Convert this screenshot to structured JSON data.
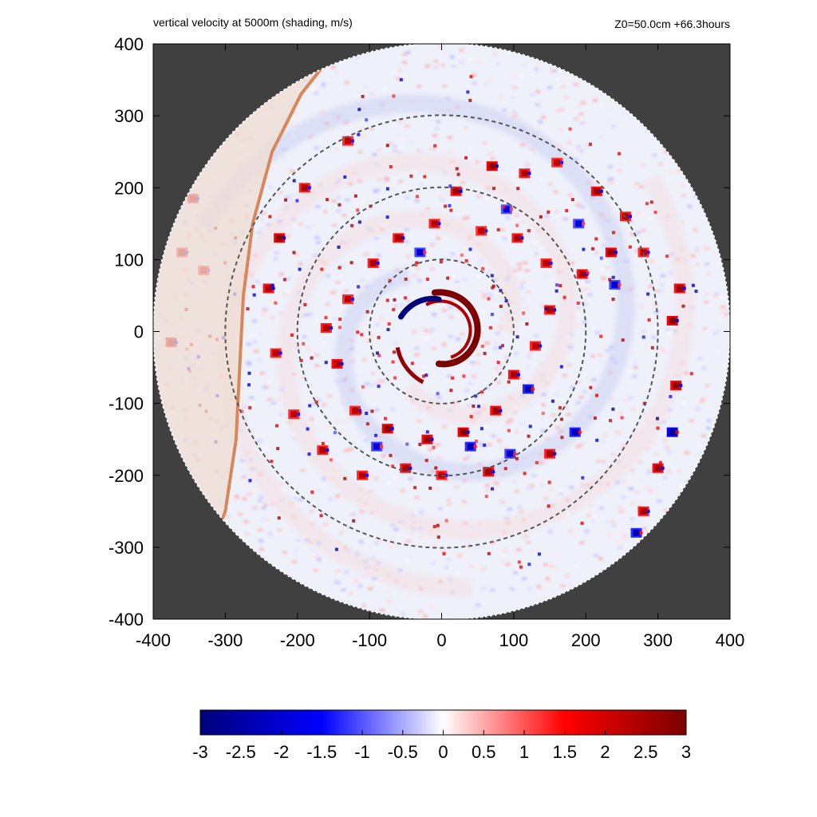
{
  "header": {
    "title": "vertical velocity at 5000m (shading, m/s)",
    "run_info": "Z0=50.0cm  +66.3hours"
  },
  "chart_data": {
    "type": "heatmap",
    "title": "vertical velocity at 5000m (shading, m/s)",
    "subtitle": "Z0=50.0cm  +66.3hours",
    "xlabel": "",
    "ylabel": "",
    "xlim": [
      -400,
      400
    ],
    "ylim": [
      -400,
      400
    ],
    "x_ticks": [
      -400,
      -300,
      -200,
      -100,
      0,
      100,
      200,
      300,
      400
    ],
    "y_ticks": [
      -400,
      -300,
      -200,
      -100,
      0,
      100,
      200,
      300,
      400
    ],
    "x_tick_labels": [
      "-400",
      "-300",
      "-200",
      "-100",
      "0",
      "100",
      "200",
      "300",
      "400"
    ],
    "y_tick_labels": [
      "-400",
      "-300",
      "-200",
      "-100",
      "0",
      "100",
      "200",
      "300",
      "400"
    ],
    "domain_radius": 400,
    "range_rings": [
      100,
      200,
      300
    ],
    "domain_edge_curve_x": [
      -140,
      -195,
      -235,
      -262,
      -275,
      -280,
      -285,
      -300,
      -330,
      -380
    ],
    "domain_edge_curve_y": [
      400,
      330,
      250,
      150,
      50,
      -50,
      -150,
      -250,
      -330,
      -390
    ],
    "colorbar": {
      "min": -3,
      "max": 3,
      "ticks": [
        -3,
        -2.5,
        -2,
        -1.5,
        -1,
        -0.5,
        0,
        0.5,
        1,
        1.5,
        2,
        2.5,
        3
      ],
      "tick_labels": [
        "-3",
        "-2.5",
        "-2",
        "-1.5",
        "-1",
        "-0.5",
        "0",
        "0.5",
        "1",
        "1.5",
        "2",
        "2.5",
        "3"
      ],
      "colors": [
        "#00007a",
        "#0000ff",
        "#ffffff",
        "#ff0000",
        "#7a0000"
      ]
    },
    "eyewall": {
      "updraft_arc_radius": 55,
      "downdraft_arc_radius": 45,
      "peak_updraft": 3,
      "peak_downdraft": -3
    },
    "convective_cells": [
      {
        "x": 20,
        "y": 195,
        "w": 2.5
      },
      {
        "x": 70,
        "y": 230,
        "w": 2.8
      },
      {
        "x": 115,
        "y": 220,
        "w": 2.4
      },
      {
        "x": 160,
        "y": 235,
        "w": 2.2
      },
      {
        "x": 215,
        "y": 195,
        "w": 2.6
      },
      {
        "x": 255,
        "y": 160,
        "w": 2.4
      },
      {
        "x": 280,
        "y": 110,
        "w": 2.2
      },
      {
        "x": 235,
        "y": 110,
        "w": 2.7
      },
      {
        "x": 195,
        "y": 80,
        "w": 2.5
      },
      {
        "x": 145,
        "y": 95,
        "w": 2.3
      },
      {
        "x": 105,
        "y": 130,
        "w": 2.4
      },
      {
        "x": 55,
        "y": 140,
        "w": 2.2
      },
      {
        "x": -10,
        "y": 150,
        "w": 2.3
      },
      {
        "x": -60,
        "y": 130,
        "w": 2.5
      },
      {
        "x": -95,
        "y": 95,
        "w": 2.4
      },
      {
        "x": -130,
        "y": 45,
        "w": 2.2
      },
      {
        "x": -160,
        "y": 5,
        "w": 2.4
      },
      {
        "x": -145,
        "y": -45,
        "w": 2.6
      },
      {
        "x": -120,
        "y": -110,
        "w": 2.3
      },
      {
        "x": -75,
        "y": -135,
        "w": 2.8
      },
      {
        "x": -20,
        "y": -150,
        "w": 2.7
      },
      {
        "x": 30,
        "y": -140,
        "w": 2.9
      },
      {
        "x": 75,
        "y": -110,
        "w": 2.6
      },
      {
        "x": 100,
        "y": -60,
        "w": 2.5
      },
      {
        "x": 130,
        "y": -20,
        "w": 2.3
      },
      {
        "x": 150,
        "y": 30,
        "w": 2.4
      },
      {
        "x": -50,
        "y": -190,
        "w": 2.5
      },
      {
        "x": 0,
        "y": -200,
        "w": 2.2
      },
      {
        "x": 65,
        "y": -195,
        "w": 2.6
      },
      {
        "x": -110,
        "y": -200,
        "w": 2.3
      },
      {
        "x": -165,
        "y": -165,
        "w": 2.4
      },
      {
        "x": -205,
        "y": -115,
        "w": 2.2
      },
      {
        "x": -230,
        "y": -30,
        "w": 2.3
      },
      {
        "x": -240,
        "y": 60,
        "w": 2.5
      },
      {
        "x": -225,
        "y": 130,
        "w": 2.8
      },
      {
        "x": -190,
        "y": 200,
        "w": 2.4
      },
      {
        "x": -130,
        "y": 265,
        "w": 2.2
      },
      {
        "x": 320,
        "y": 15,
        "w": 2.9
      },
      {
        "x": 325,
        "y": -75,
        "w": 2.8
      },
      {
        "x": 300,
        "y": -190,
        "w": 2.6
      },
      {
        "x": 280,
        "y": -250,
        "w": 2.5
      },
      {
        "x": 330,
        "y": 60,
        "w": 2.6
      },
      {
        "x": 185,
        "y": -140,
        "w": -2.4
      },
      {
        "x": 320,
        "y": -140,
        "w": -2.7
      },
      {
        "x": 270,
        "y": -280,
        "w": -2.3
      },
      {
        "x": 40,
        "y": -160,
        "w": -2.2
      },
      {
        "x": -90,
        "y": -160,
        "w": -2.0
      },
      {
        "x": 120,
        "y": -80,
        "w": -2.3
      },
      {
        "x": 150,
        "y": -170,
        "w": 2.4
      },
      {
        "x": 95,
        "y": -170,
        "w": -2.1
      },
      {
        "x": -30,
        "y": 110,
        "w": -2.0
      },
      {
        "x": 90,
        "y": 170,
        "w": -1.8
      },
      {
        "x": 190,
        "y": 150,
        "w": -1.9
      },
      {
        "x": 240,
        "y": 65,
        "w": -2.0
      },
      {
        "x": -360,
        "y": 110,
        "w": 2.2
      },
      {
        "x": -375,
        "y": -15,
        "w": 2.5
      },
      {
        "x": -330,
        "y": 85,
        "w": 2.0
      },
      {
        "x": -345,
        "y": 185,
        "w": 2.3
      }
    ]
  }
}
